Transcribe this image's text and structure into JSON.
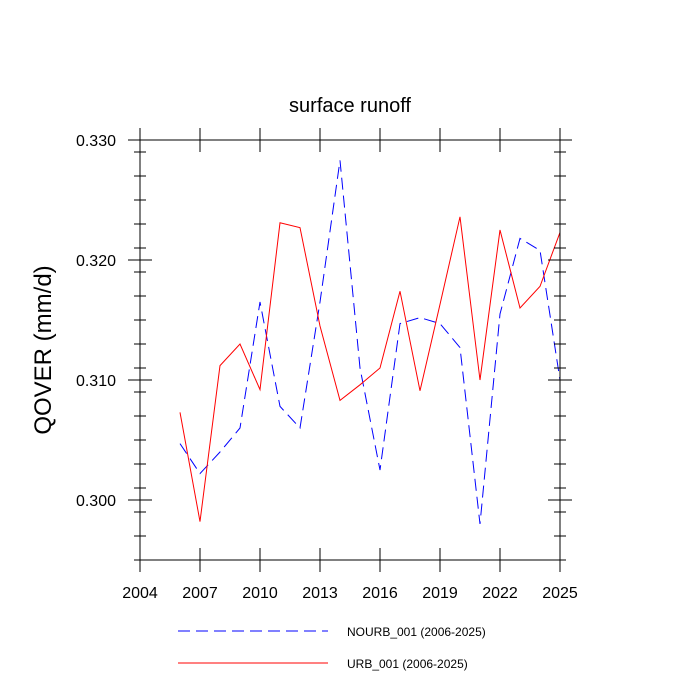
{
  "chart_data": {
    "type": "line",
    "title": "surface runoff",
    "ylabel": "QOVER  (mm/d)",
    "xlabel": "",
    "xlim": [
      2004,
      2025
    ],
    "ylim": [
      0.295,
      0.33
    ],
    "x_ticks": [
      2004,
      2007,
      2010,
      2013,
      2016,
      2019,
      2022,
      2025
    ],
    "x_tick_labels": [
      "2004",
      "2007",
      "2010",
      "2013",
      "2016",
      "2019",
      "2022",
      "2025"
    ],
    "y_ticks": [
      0.3,
      0.31,
      0.32,
      0.33
    ],
    "y_tick_labels": [
      "0.300",
      "0.310",
      "0.320",
      "0.330"
    ],
    "grid": false,
    "legend_position": "bottom",
    "x": [
      2006,
      2007,
      2008,
      2009,
      2010,
      2011,
      2012,
      2013,
      2014,
      2015,
      2016,
      2017,
      2018,
      2019,
      2020,
      2021,
      2022,
      2023,
      2024,
      2025
    ],
    "series": [
      {
        "name": "NOURB_001 (2006-2025)",
        "color": "#0000ff",
        "dash": "dashed",
        "values": [
          0.3047,
          0.3022,
          0.304,
          0.306,
          0.3165,
          0.3078,
          0.306,
          0.3165,
          0.3283,
          0.311,
          0.3025,
          0.3147,
          0.3152,
          0.3147,
          0.3127,
          0.298,
          0.3155,
          0.3218,
          0.3208,
          0.31
        ]
      },
      {
        "name": "URB_001 (2006-2025)",
        "color": "#ff0000",
        "dash": "solid",
        "values": [
          0.3073,
          0.2982,
          0.3112,
          0.313,
          0.3092,
          0.3231,
          0.3227,
          0.3145,
          0.3083,
          0.3096,
          0.311,
          0.3174,
          0.3091,
          0.3163,
          0.3236,
          0.31,
          0.3225,
          0.316,
          0.3178,
          0.3223
        ]
      }
    ]
  }
}
